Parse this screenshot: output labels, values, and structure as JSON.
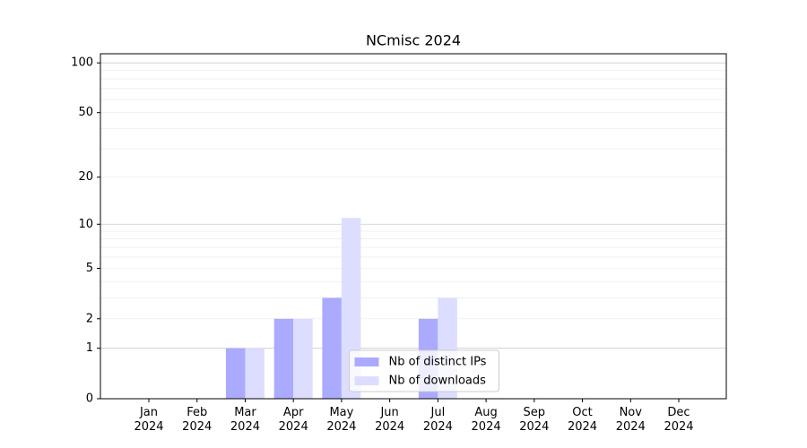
{
  "chart_data": {
    "type": "bar",
    "title": "NCmisc 2024",
    "categories": [
      "Jan\n2024",
      "Feb\n2024",
      "Mar\n2024",
      "Apr\n2024",
      "May\n2024",
      "Jun\n2024",
      "Jul\n2024",
      "Aug\n2024",
      "Sep\n2024",
      "Oct\n2024",
      "Nov\n2024",
      "Dec\n2024"
    ],
    "series": [
      {
        "name": "Nb of distinct IPs",
        "color": "#aaaaff",
        "values": [
          0,
          0,
          1,
          2,
          3,
          0,
          2,
          0,
          0,
          0,
          0,
          0
        ]
      },
      {
        "name": "Nb of downloads",
        "color": "#ddddff",
        "values": [
          0,
          0,
          1,
          2,
          11,
          0,
          3,
          0,
          0,
          0,
          0,
          0
        ]
      }
    ],
    "yscale": "log1p",
    "ylim": [
      0,
      113.5
    ],
    "yticks": [
      0,
      1,
      2,
      5,
      10,
      20,
      50,
      100
    ],
    "yminor": [
      3,
      4,
      6,
      7,
      8,
      9,
      30,
      40,
      60,
      70,
      80,
      90
    ],
    "grid": true,
    "legend": "lower center"
  }
}
